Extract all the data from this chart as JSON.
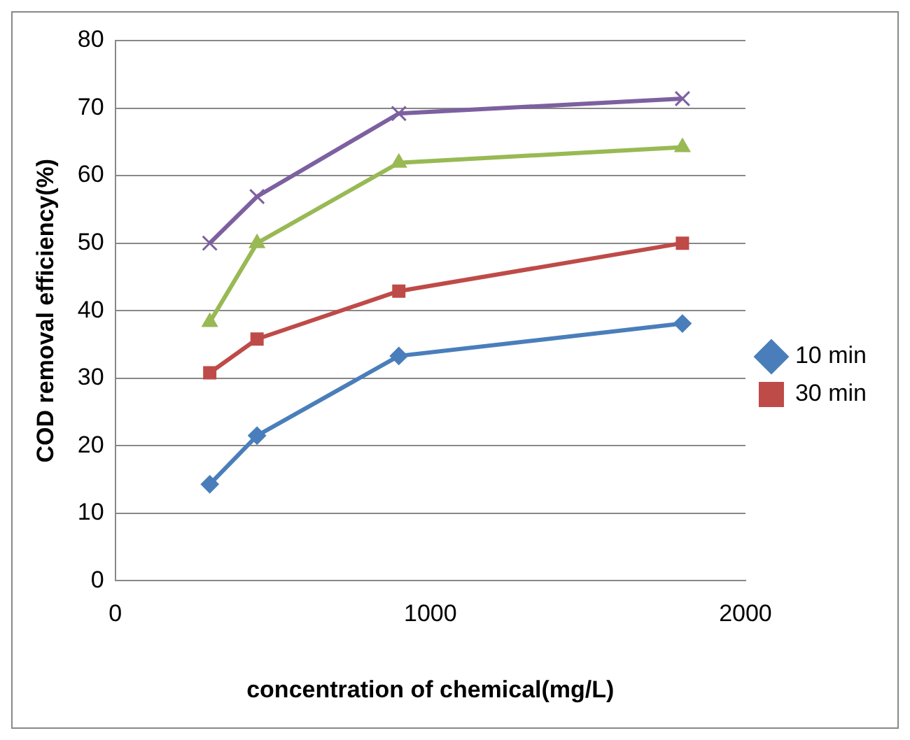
{
  "chart_data": {
    "type": "line",
    "xlabel": "concentration of chemical(mg/L)",
    "ylabel": "COD removal efficiency(%)",
    "xlim": [
      0,
      2000
    ],
    "xticks": [
      0,
      1000,
      2000
    ],
    "ylim": [
      0,
      80
    ],
    "yticks": [
      0,
      10,
      20,
      30,
      40,
      50,
      60,
      70,
      80
    ],
    "grid": "y",
    "legend": "right",
    "series": [
      {
        "name": "10 min",
        "color": "#4a7ebb",
        "marker": "diamond",
        "x": [
          300,
          450,
          900,
          1800
        ],
        "values": [
          14.3,
          21.5,
          33.3,
          38.1
        ]
      },
      {
        "name": "30 min",
        "color": "#be4b48",
        "marker": "square",
        "x": [
          300,
          450,
          900,
          1800
        ],
        "values": [
          30.8,
          35.8,
          42.9,
          50
        ]
      },
      {
        "color": "#98b954",
        "marker": "triangle",
        "x": [
          300,
          450,
          900,
          1800
        ],
        "values": [
          38.3,
          50,
          61.9,
          64.2
        ]
      },
      {
        "color": "#7d60a0",
        "marker": "cross",
        "x": [
          300,
          450,
          900,
          1800
        ],
        "values": [
          50,
          56.9,
          69.2,
          71.4
        ]
      }
    ]
  }
}
